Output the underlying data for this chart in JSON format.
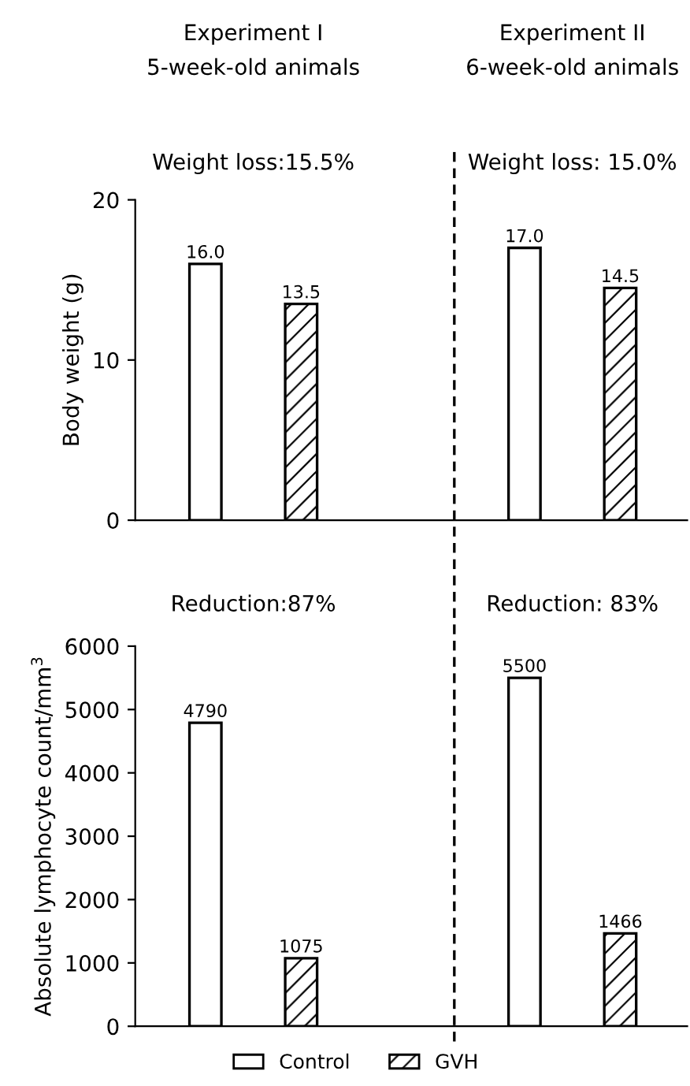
{
  "chart_data": [
    {
      "type": "bar",
      "categories": [
        "Experiment I\n5-week-old animals",
        "Experiment II\n6-week-old animals"
      ],
      "ylabel": "Body weight (g)",
      "ylim": [
        0,
        20
      ],
      "yticks": [
        0,
        10,
        20
      ],
      "grid": false,
      "series": [
        {
          "color": "#ffffff",
          "values": [
            16.0,
            17.0
          ],
          "value_labels": [
            "16.0",
            "17.0"
          ]
        },
        {
          "color": "#000000",
          "values": [
            13.5,
            14.5
          ],
          "value_labels": [
            "13.5",
            "14.5"
          ]
        }
      ],
      "annotations": [
        "Weight loss:15.5%",
        "Weight loss: 15.0%"
      ]
    },
    {
      "type": "bar",
      "categories": [
        null,
        null
      ],
      "tick_labels": "y",
      "ylabel": "Absolute lymphocyte count/mm$^{3}$",
      "ylim": [
        0,
        6000
      ],
      "yticks": [
        0,
        1000,
        2000,
        3000,
        4000,
        5000,
        6000
      ],
      "data_labels": true,
      "grid": false,
      "legend": "bottom",
      "series": [
        {
          "name": "Control",
          "color": "#ffffff",
          "values": [
            4790,
            5500
          ]
        },
        {
          "name": "GVH",
          "color": "#000000",
          "values": [
            1075,
            1466
          ]
        }
      ],
      "annotations": [
        "Reduction:87%",
        "Reduction: 83%"
      ]
    }
  ]
}
